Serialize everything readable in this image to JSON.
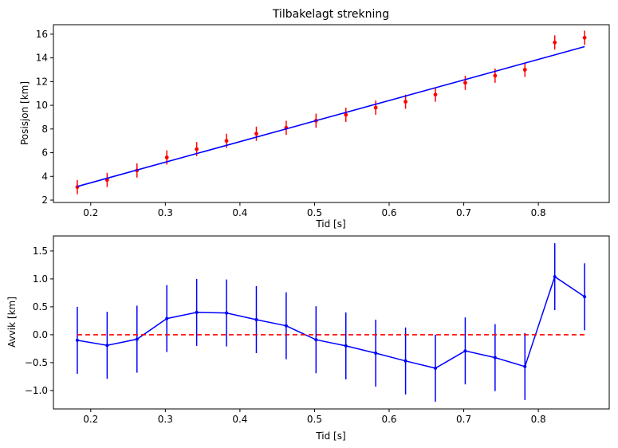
{
  "chart_data": [
    {
      "type": "scatter",
      "title": "Tilbakelagt strekning",
      "xlabel": "Tid [s]",
      "ylabel": "Posisjon [km]",
      "xlim": [
        0.15,
        0.895
      ],
      "ylim": [
        1.8,
        16.8
      ],
      "xticks": [
        0.2,
        0.3,
        0.4,
        0.5,
        0.6,
        0.7,
        0.8
      ],
      "yticks": [
        2,
        4,
        6,
        8,
        10,
        12,
        14,
        16
      ],
      "grid": false,
      "series": [
        {
          "kind": "errorbar-points",
          "color": "#ff0000",
          "x": [
            0.182,
            0.222,
            0.262,
            0.302,
            0.342,
            0.382,
            0.422,
            0.462,
            0.502,
            0.542,
            0.582,
            0.622,
            0.662,
            0.702,
            0.742,
            0.782,
            0.822,
            0.862
          ],
          "y": [
            3.1,
            3.7,
            4.5,
            5.6,
            6.3,
            7.0,
            7.6,
            8.1,
            8.7,
            9.2,
            9.8,
            10.3,
            10.9,
            11.9,
            12.5,
            13.0,
            15.3,
            15.7
          ],
          "yerr": 0.6
        },
        {
          "kind": "line",
          "color": "#0000ff",
          "x": [
            0.182,
            0.862
          ],
          "y": [
            3.15,
            14.95
          ]
        }
      ]
    },
    {
      "type": "line",
      "title": "",
      "xlabel": "Tid [s]",
      "ylabel": "Avvik [km]",
      "xlim": [
        0.15,
        0.895
      ],
      "ylim": [
        -1.33,
        1.77
      ],
      "xticks": [
        0.2,
        0.3,
        0.4,
        0.5,
        0.6,
        0.7,
        0.8
      ],
      "yticks": [
        -1.0,
        -0.5,
        0.0,
        0.5,
        1.0,
        1.5
      ],
      "grid": false,
      "series": [
        {
          "kind": "errorbar-line",
          "color": "#0000ff",
          "x": [
            0.182,
            0.222,
            0.262,
            0.302,
            0.342,
            0.382,
            0.422,
            0.462,
            0.502,
            0.542,
            0.582,
            0.622,
            0.662,
            0.702,
            0.742,
            0.782,
            0.822,
            0.862
          ],
          "y": [
            -0.1,
            -0.19,
            -0.08,
            0.29,
            0.4,
            0.39,
            0.27,
            0.16,
            -0.09,
            -0.2,
            -0.33,
            -0.47,
            -0.6,
            -0.29,
            -0.41,
            -0.57,
            1.04,
            0.68
          ],
          "yerr": 0.6
        },
        {
          "kind": "dashed-line",
          "color": "#ff0000",
          "x": [
            0.182,
            0.862
          ],
          "y": [
            0.0,
            0.0
          ]
        }
      ]
    }
  ]
}
